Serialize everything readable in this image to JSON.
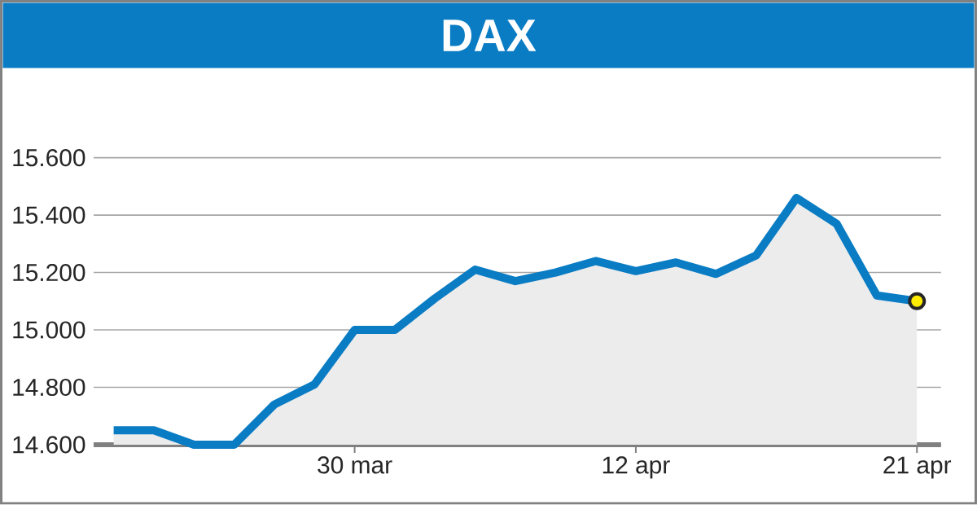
{
  "chart_data": {
    "type": "area",
    "title": "DAX",
    "categories": [
      null,
      null,
      null,
      null,
      null,
      null,
      "30 mar",
      null,
      null,
      null,
      null,
      null,
      null,
      "12 apr",
      null,
      null,
      null,
      null,
      null,
      null,
      "21 apr"
    ],
    "series": [
      {
        "color": "#0a7cc4",
        "values": [
          14650,
          14650,
          14600,
          14600,
          14740,
          14810,
          15000,
          15000,
          15110,
          15210,
          15170,
          15200,
          15240,
          15205,
          15235,
          15195,
          15260,
          15460,
          15370,
          15120,
          15100
        ]
      },
      {
        "type": "scatter",
        "color": "#ffec00",
        "values": [
          null,
          null,
          null,
          null,
          null,
          null,
          null,
          null,
          null,
          null,
          null,
          null,
          null,
          null,
          null,
          null,
          null,
          null,
          null,
          null,
          15100
        ]
      }
    ],
    "ylim": [
      14600,
      15600
    ],
    "yticks": [
      {
        "value": 14600,
        "label": "14.600"
      },
      {
        "value": 14800,
        "label": "14.800"
      },
      {
        "value": 15000,
        "label": "15.000"
      },
      {
        "value": 15200,
        "label": "15.200"
      },
      {
        "value": 15400,
        "label": "15.400"
      },
      {
        "value": 15600,
        "label": "15.600"
      }
    ],
    "grid": "y"
  }
}
